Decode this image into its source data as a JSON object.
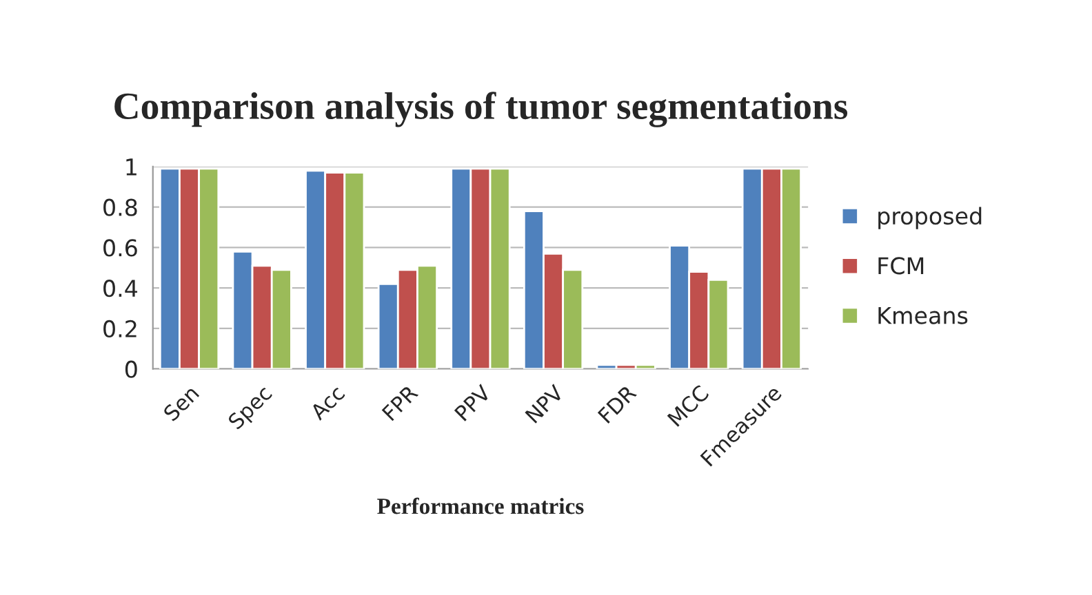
{
  "chart_data": {
    "type": "bar",
    "title": "Comparison analysis of tumor segmentations",
    "xlabel": "Performance matrics",
    "categories": [
      "Sen",
      "Spec",
      "Acc",
      "FPR",
      "PPV",
      "NPV",
      "FDR",
      "MCC",
      "Fmeasure"
    ],
    "series": [
      {
        "name": "proposed",
        "color": "#4f81bd",
        "values": [
          0.99,
          0.58,
          0.98,
          0.42,
          0.99,
          0.78,
          0.02,
          0.61,
          0.99
        ]
      },
      {
        "name": "FCM",
        "color": "#c0504d",
        "values": [
          0.99,
          0.51,
          0.97,
          0.49,
          0.99,
          0.57,
          0.02,
          0.48,
          0.99
        ]
      },
      {
        "name": "Kmeans",
        "color": "#9bbb59",
        "values": [
          0.99,
          0.49,
          0.97,
          0.51,
          0.99,
          0.49,
          0.02,
          0.44,
          0.99
        ]
      }
    ],
    "ylim": [
      0,
      1
    ],
    "yticks": [
      0,
      0.2,
      0.4,
      0.6,
      0.8,
      1
    ],
    "grid": "y",
    "legend": "right"
  }
}
